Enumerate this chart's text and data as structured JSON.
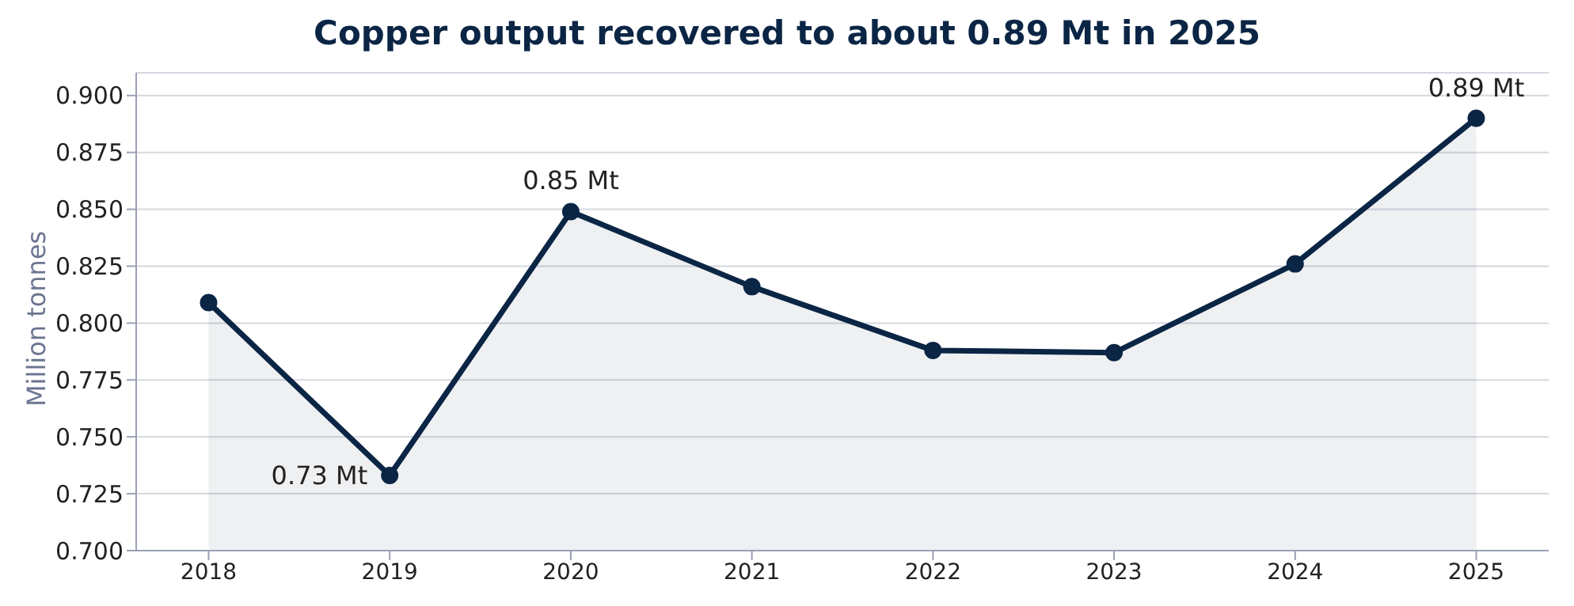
{
  "chart_data": {
    "type": "area",
    "title": "Copper output recovered to about 0.89 Mt in 2025",
    "ylabel": "Million tonnes",
    "categories": [
      "2018",
      "2019",
      "2020",
      "2021",
      "2022",
      "2023",
      "2024",
      "2025"
    ],
    "series": [
      {
        "color": "#0b2545",
        "values": [
          0.809,
          0.733,
          0.849,
          0.816,
          0.788,
          0.787,
          0.826,
          0.89
        ]
      }
    ],
    "ylim": [
      0.7,
      0.91
    ],
    "yticks": [
      {
        "value": 0.7,
        "label": "0.700"
      },
      {
        "value": 0.725,
        "label": "0.725"
      },
      {
        "value": 0.75,
        "label": "0.750"
      },
      {
        "value": 0.775,
        "label": "0.775"
      },
      {
        "value": 0.8,
        "label": "0.800"
      },
      {
        "value": 0.825,
        "label": "0.825"
      },
      {
        "value": 0.85,
        "label": "0.850"
      },
      {
        "value": 0.875,
        "label": "0.875"
      },
      {
        "value": 0.9,
        "label": "0.900"
      }
    ],
    "grid": "y",
    "marker": "circle",
    "legend": false,
    "annotations": [
      {
        "text": "0.73 Mt",
        "x": "2019",
        "y": 0.733
      },
      {
        "text": "0.85 Mt",
        "x": "2020",
        "y": 0.849
      },
      {
        "text": "0.89 Mt",
        "x": "2025",
        "y": 0.89
      }
    ]
  }
}
